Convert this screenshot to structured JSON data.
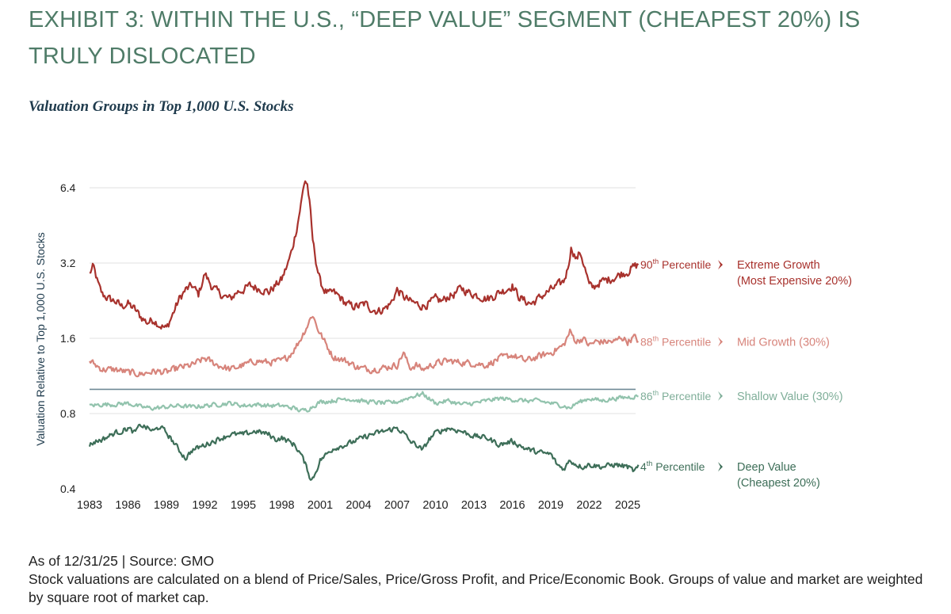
{
  "header": {
    "title": "EXHIBIT 3: WITHIN THE U.S., “DEEP VALUE” SEGMENT (CHEAPEST 20%) IS TRULY DISLOCATED",
    "subtitle": "Valuation Groups in Top 1,000 U.S. Stocks"
  },
  "chart_data": {
    "type": "line",
    "title": "Valuation Groups in Top 1,000 U.S. Stocks",
    "ylabel": "Valuation Relative to Top 1,000 U.S. Stocks",
    "xlabel": "",
    "y_scale": "log2",
    "ylim": [
      0.4,
      7.0
    ],
    "xlim": [
      1983,
      2025.9
    ],
    "y_ticks": [
      {
        "value": 0.4,
        "label": "0.4"
      },
      {
        "value": 0.8,
        "label": "0.8"
      },
      {
        "value": 1.6,
        "label": "1.6"
      },
      {
        "value": 3.2,
        "label": "3.2"
      },
      {
        "value": 6.4,
        "label": "6.4"
      }
    ],
    "x_ticks": [
      "1983",
      "1986",
      "1989",
      "1992",
      "1995",
      "1998",
      "2001",
      "2004",
      "2007",
      "2010",
      "2013",
      "2016",
      "2019",
      "2022",
      "2025"
    ],
    "reference_line": 1.0,
    "series": [
      {
        "name": "Extreme Growth (Most Expensive 20%)",
        "label_line1": "Extreme Growth",
        "label_line2": "(Most Expensive 20%)",
        "percentile_num": "90",
        "percentile_sup": "th",
        "percentile_word": "Percentile",
        "color": "#a8322d",
        "x": [
          1983.0,
          1983.3,
          1983.7,
          1984.0,
          1984.5,
          1985.0,
          1985.5,
          1986.0,
          1986.5,
          1987.0,
          1987.5,
          1988.0,
          1988.5,
          1989.0,
          1989.5,
          1990.0,
          1990.5,
          1991.0,
          1991.5,
          1992.0,
          1992.5,
          1993.0,
          1993.5,
          1994.0,
          1994.5,
          1995.0,
          1995.5,
          1996.0,
          1996.5,
          1997.0,
          1997.5,
          1998.0,
          1998.5,
          1998.8,
          1999.2,
          1999.5,
          1999.8,
          2000.0,
          2000.2,
          2000.4,
          2000.7,
          2001.0,
          2001.3,
          2001.7,
          2002.0,
          2002.5,
          2003.0,
          2003.5,
          2004.0,
          2004.5,
          2005.0,
          2005.5,
          2006.0,
          2006.5,
          2007.0,
          2007.5,
          2008.0,
          2008.5,
          2009.0,
          2009.5,
          2010.0,
          2010.5,
          2011.0,
          2011.5,
          2012.0,
          2012.5,
          2013.0,
          2013.5,
          2014.0,
          2014.5,
          2015.0,
          2015.5,
          2016.0,
          2016.5,
          2017.0,
          2017.5,
          2018.0,
          2018.5,
          2019.0,
          2019.5,
          2020.0,
          2020.3,
          2020.6,
          2021.0,
          2021.3,
          2021.7,
          2022.0,
          2022.3,
          2022.7,
          2023.0,
          2023.5,
          2024.0,
          2024.5,
          2025.0,
          2025.5,
          2025.9
        ],
        "values": [
          2.9,
          3.1,
          2.6,
          2.4,
          2.3,
          2.25,
          2.15,
          2.2,
          2.1,
          1.95,
          1.85,
          1.9,
          1.8,
          1.75,
          2.0,
          2.3,
          2.5,
          2.6,
          2.4,
          2.9,
          2.6,
          2.45,
          2.35,
          2.3,
          2.45,
          2.5,
          2.6,
          2.55,
          2.5,
          2.45,
          2.6,
          2.75,
          3.2,
          3.6,
          4.5,
          5.5,
          6.9,
          6.6,
          5.4,
          4.0,
          3.2,
          2.7,
          2.5,
          2.4,
          2.45,
          2.35,
          2.2,
          2.15,
          2.15,
          2.2,
          2.1,
          2.05,
          2.1,
          2.2,
          2.5,
          2.35,
          2.25,
          2.2,
          2.15,
          2.2,
          2.3,
          2.25,
          2.35,
          2.4,
          2.55,
          2.45,
          2.4,
          2.35,
          2.3,
          2.35,
          2.45,
          2.5,
          2.6,
          2.35,
          2.25,
          2.2,
          2.3,
          2.4,
          2.5,
          2.6,
          2.7,
          3.0,
          3.7,
          3.3,
          3.55,
          3.0,
          2.6,
          2.55,
          2.65,
          2.7,
          2.75,
          2.8,
          2.9,
          2.95,
          3.1,
          3.15
        ]
      },
      {
        "name": "Mid Growth (30%)",
        "label_line1": "Mid Growth (30%)",
        "label_line2": "",
        "percentile_num": "88",
        "percentile_sup": "th",
        "percentile_word": "Percentile",
        "color": "#d7847b",
        "x": [
          1983.0,
          1984.0,
          1985.0,
          1986.0,
          1987.0,
          1988.0,
          1989.0,
          1990.0,
          1991.0,
          1992.0,
          1993.0,
          1994.0,
          1995.0,
          1996.0,
          1997.0,
          1998.0,
          1998.5,
          1999.0,
          1999.5,
          2000.0,
          2000.4,
          2000.8,
          2001.5,
          2002.0,
          2003.0,
          2004.0,
          2005.0,
          2006.0,
          2007.0,
          2007.5,
          2008.0,
          2008.5,
          2009.0,
          2010.0,
          2011.0,
          2012.0,
          2013.0,
          2014.0,
          2015.0,
          2016.0,
          2017.0,
          2018.0,
          2019.0,
          2020.0,
          2020.5,
          2021.0,
          2021.5,
          2022.0,
          2022.5,
          2023.0,
          2024.0,
          2024.5,
          2025.0,
          2025.5,
          2025.9
        ],
        "values": [
          1.3,
          1.2,
          1.2,
          1.17,
          1.15,
          1.18,
          1.17,
          1.22,
          1.25,
          1.33,
          1.25,
          1.2,
          1.25,
          1.3,
          1.28,
          1.3,
          1.35,
          1.45,
          1.6,
          1.8,
          2.0,
          1.75,
          1.5,
          1.35,
          1.3,
          1.22,
          1.2,
          1.22,
          1.25,
          1.4,
          1.22,
          1.25,
          1.2,
          1.27,
          1.3,
          1.28,
          1.27,
          1.25,
          1.33,
          1.37,
          1.3,
          1.35,
          1.4,
          1.5,
          1.7,
          1.55,
          1.6,
          1.5,
          1.55,
          1.55,
          1.55,
          1.62,
          1.55,
          1.62,
          1.55
        ]
      },
      {
        "name": "Shallow Value (30%)",
        "label_line1": "Shallow Value (30%)",
        "label_line2": "",
        "percentile_num": "86",
        "percentile_sup": "th",
        "percentile_word": "Percentile",
        "color": "#92c3ad",
        "x": [
          1983.0,
          1984.0,
          1985.0,
          1986.0,
          1987.0,
          1988.0,
          1989.0,
          1990.0,
          1991.0,
          1992.0,
          1993.0,
          1994.0,
          1995.0,
          1996.0,
          1997.0,
          1998.0,
          1999.0,
          1999.5,
          2000.0,
          2000.5,
          2001.0,
          2002.0,
          2003.0,
          2004.0,
          2005.0,
          2006.0,
          2007.0,
          2008.0,
          2009.0,
          2010.0,
          2011.0,
          2012.0,
          2013.0,
          2014.0,
          2015.0,
          2016.0,
          2017.0,
          2018.0,
          2019.0,
          2020.0,
          2020.5,
          2021.0,
          2022.0,
          2023.0,
          2024.0,
          2025.0,
          2025.9
        ],
        "values": [
          0.86,
          0.87,
          0.87,
          0.88,
          0.85,
          0.84,
          0.85,
          0.86,
          0.85,
          0.86,
          0.87,
          0.88,
          0.86,
          0.87,
          0.86,
          0.86,
          0.84,
          0.82,
          0.83,
          0.86,
          0.89,
          0.9,
          0.92,
          0.9,
          0.89,
          0.88,
          0.89,
          0.93,
          0.96,
          0.88,
          0.9,
          0.87,
          0.88,
          0.9,
          0.92,
          0.91,
          0.9,
          0.9,
          0.88,
          0.86,
          0.84,
          0.88,
          0.92,
          0.9,
          0.92,
          0.93,
          0.94
        ]
      },
      {
        "name": "Deep Value (Cheapest 20%)",
        "label_line1": "Deep Value",
        "label_line2": "(Cheapest 20%)",
        "percentile_num": "4",
        "percentile_sup": "th",
        "percentile_word": "Percentile",
        "color": "#3d6e58",
        "x": [
          1983.0,
          1983.5,
          1984.0,
          1985.0,
          1985.5,
          1986.0,
          1986.5,
          1987.0,
          1987.5,
          1988.0,
          1988.5,
          1989.0,
          1989.5,
          1990.0,
          1990.5,
          1991.0,
          1992.0,
          1993.0,
          1994.0,
          1995.0,
          1996.0,
          1997.0,
          1997.5,
          1998.0,
          1998.5,
          1999.0,
          1999.5,
          2000.0,
          2000.3,
          2000.6,
          2001.0,
          2001.5,
          2002.0,
          2003.0,
          2004.0,
          2005.0,
          2006.0,
          2007.0,
          2007.5,
          2008.0,
          2008.5,
          2009.0,
          2009.5,
          2010.0,
          2011.0,
          2012.0,
          2013.0,
          2014.0,
          2015.0,
          2016.0,
          2017.0,
          2018.0,
          2019.0,
          2019.5,
          2020.0,
          2020.5,
          2021.0,
          2021.5,
          2022.0,
          2023.0,
          2024.0,
          2025.0,
          2025.5,
          2025.9
        ],
        "values": [
          0.6,
          0.62,
          0.63,
          0.67,
          0.68,
          0.7,
          0.67,
          0.72,
          0.7,
          0.68,
          0.71,
          0.67,
          0.62,
          0.57,
          0.53,
          0.57,
          0.6,
          0.63,
          0.66,
          0.66,
          0.68,
          0.66,
          0.63,
          0.64,
          0.62,
          0.6,
          0.55,
          0.48,
          0.43,
          0.46,
          0.52,
          0.55,
          0.58,
          0.6,
          0.63,
          0.66,
          0.68,
          0.7,
          0.67,
          0.62,
          0.6,
          0.57,
          0.63,
          0.67,
          0.7,
          0.68,
          0.65,
          0.64,
          0.6,
          0.62,
          0.58,
          0.56,
          0.55,
          0.5,
          0.48,
          0.52,
          0.5,
          0.49,
          0.5,
          0.49,
          0.5,
          0.49,
          0.47,
          0.49
        ]
      }
    ]
  },
  "footer": {
    "source": "As of 12/31/25 | Source: GMO",
    "note": "Stock valuations are calculated on a blend of Price/Sales, Price/Gross Profit, and Price/Economic Book. Groups of value and market are weighted by square root of market cap."
  }
}
